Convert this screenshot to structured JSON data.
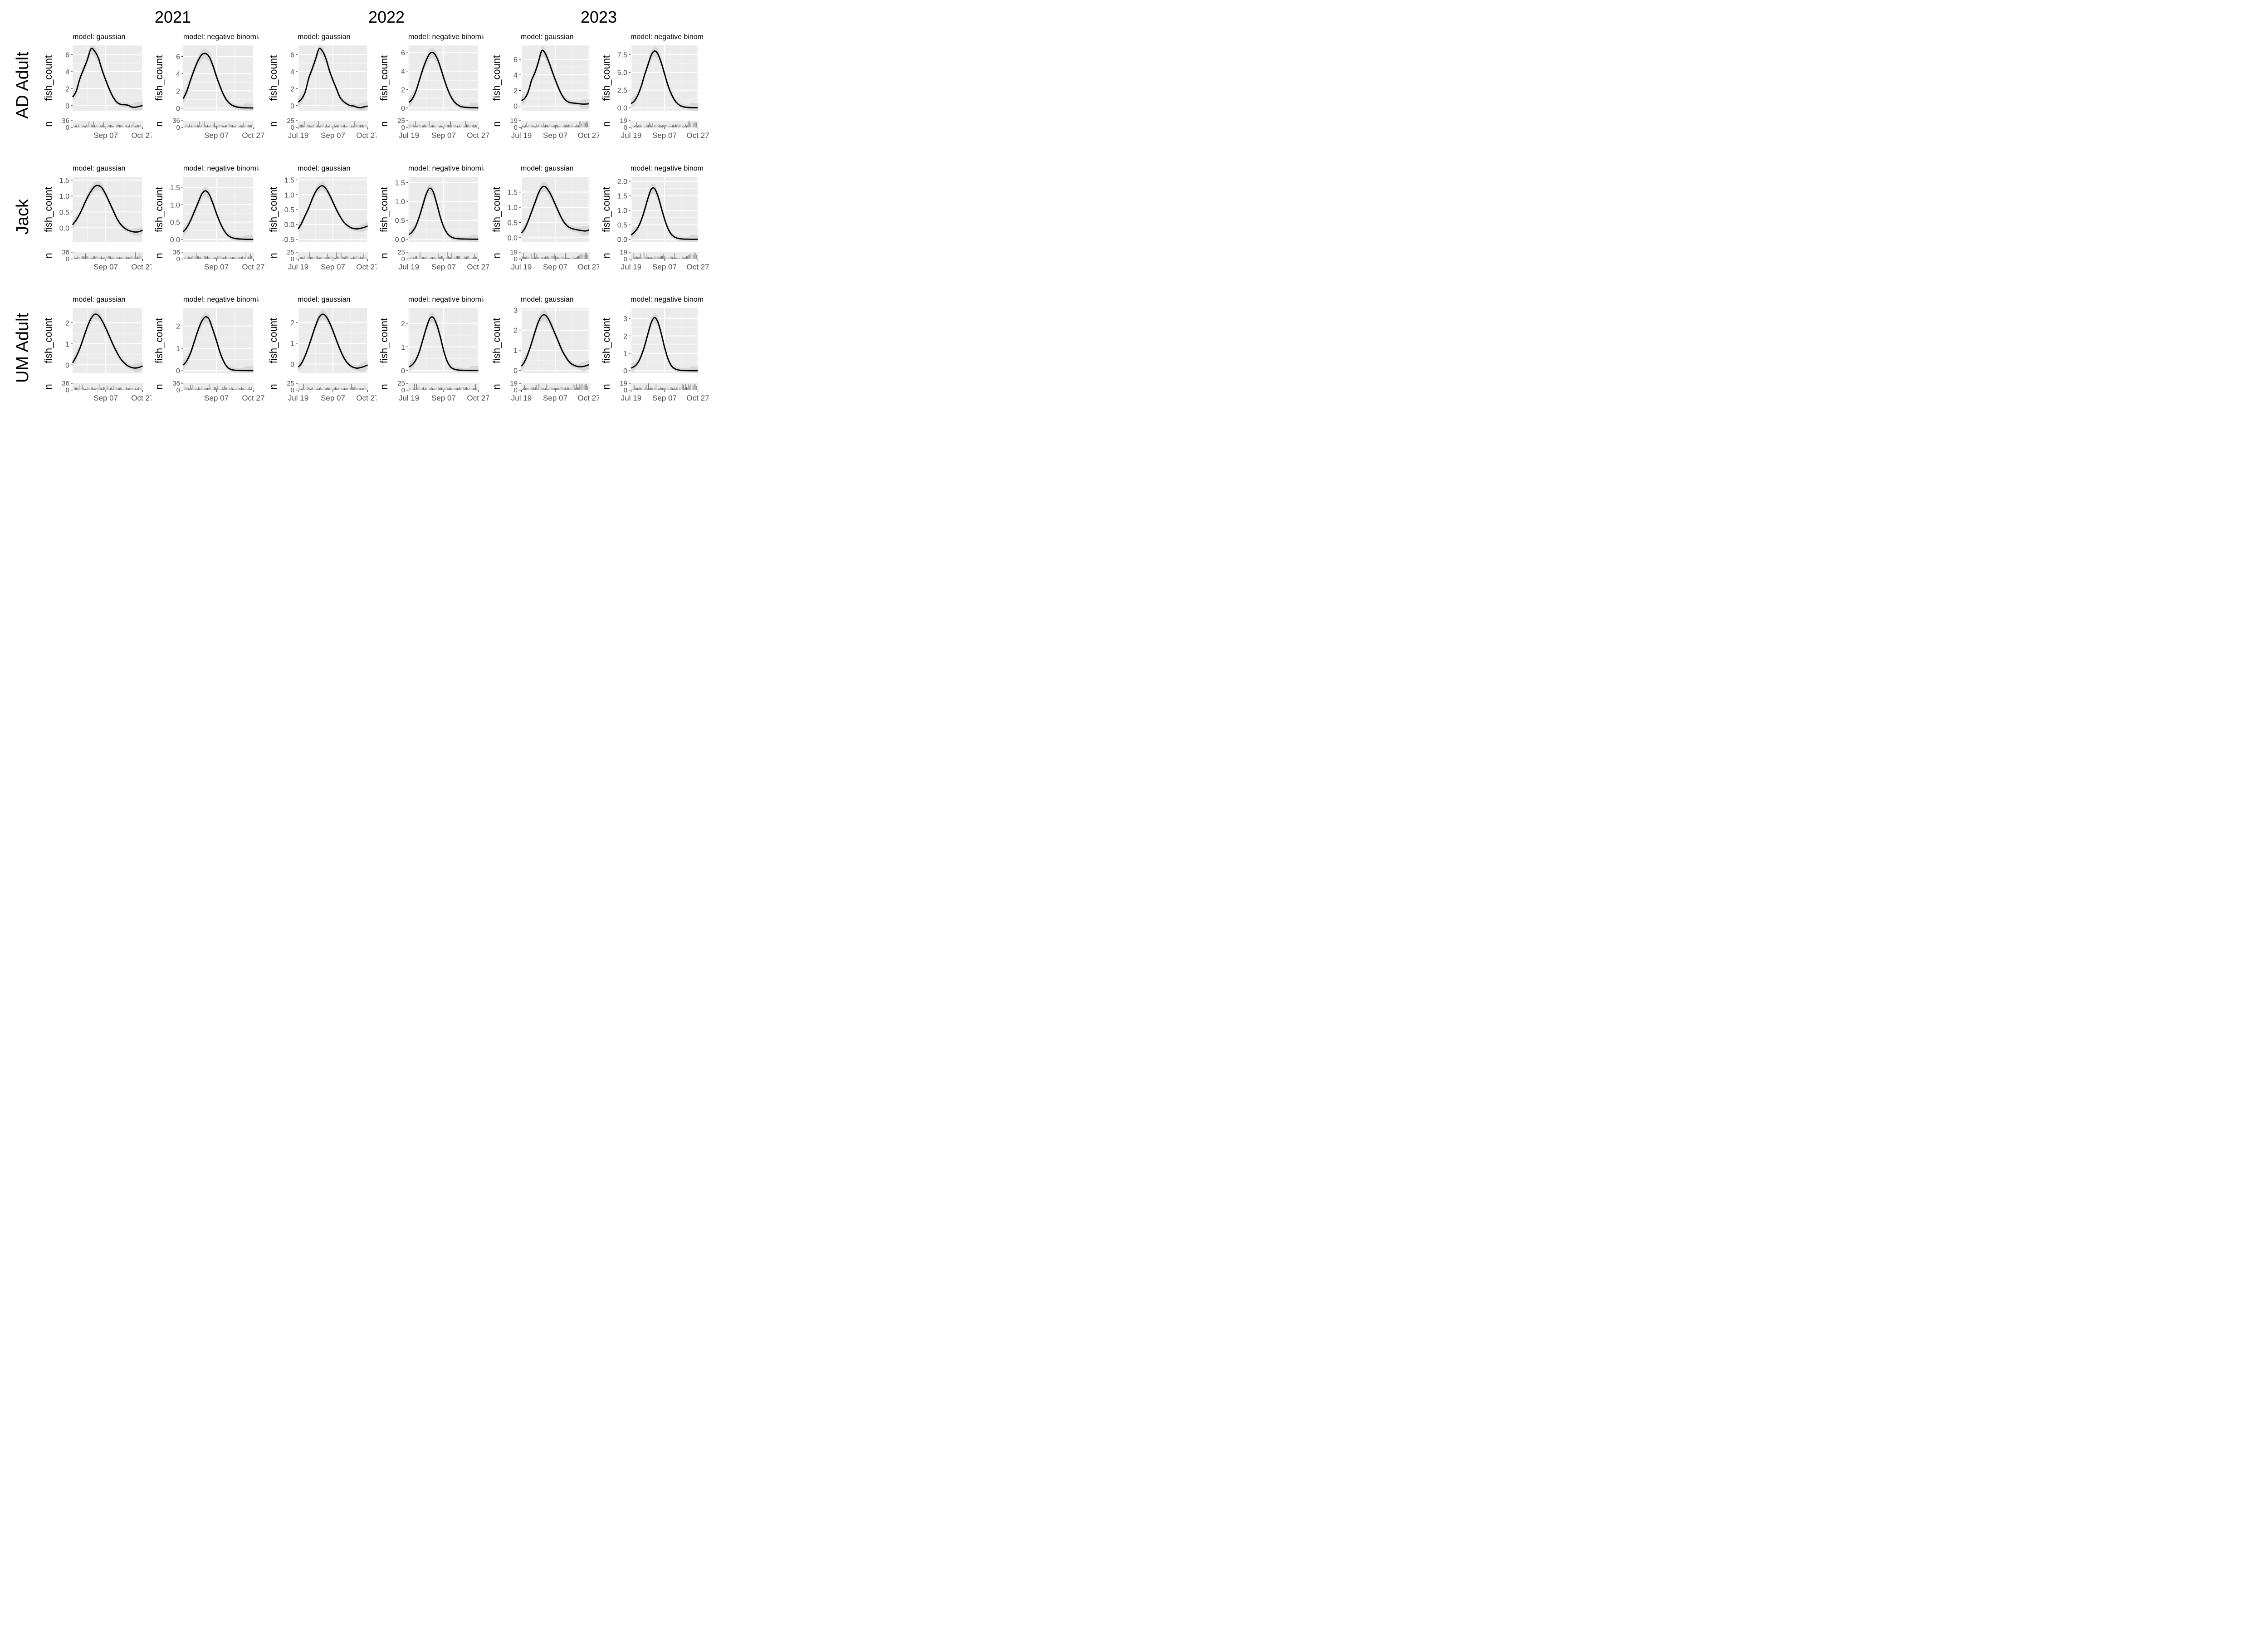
{
  "figure": {
    "years": [
      "2021",
      "2022",
      "2023"
    ],
    "rows": [
      "AD Adult",
      "Jack",
      "UM Adult"
    ],
    "panel_titles": [
      "model: gaussian",
      "model: negative binomial"
    ],
    "y_axis_title": "fish_count",
    "hist_axis_title": "n"
  },
  "chart_data": {
    "type": "line",
    "description_rows": [
      "AD Adult",
      "Jack",
      "UM Adult"
    ],
    "x_axis": {
      "label": "",
      "unit": "day-of-year",
      "tick_labels_by_year": {
        "2021": [
          "Sep 07",
          "Oct 27"
        ],
        "2022": [
          "Jul 19",
          "Sep 07",
          "Oct 27"
        ],
        "2023": [
          "Jul 19",
          "Sep 07",
          "Oct 27"
        ]
      },
      "tick_doy": {
        "Jul 19": 200,
        "Sep 07": 250,
        "Oct 27": 300
      },
      "xlim_by_year": {
        "2021": [
          205,
          301
        ],
        "2022": [
          199,
          301
        ],
        "2023": [
          199,
          301
        ]
      }
    },
    "hist_max_by_year": {
      "2021": 36,
      "2022": 25,
      "2023": 19
    },
    "panels": [
      {
        "row": "AD Adult",
        "year": "2021",
        "model": "gaussian",
        "ylim": [
          -0.6,
          7.1
        ],
        "yticks": [
          0,
          2,
          4,
          6
        ],
        "x": [
          205,
          210,
          215,
          220,
          225,
          230,
          235,
          240,
          245,
          250,
          255,
          260,
          265,
          270,
          275,
          280,
          285,
          290,
          295,
          300
        ],
        "y": [
          1.0,
          1.7,
          3.2,
          4.3,
          5.4,
          6.7,
          6.4,
          5.6,
          4.2,
          3.0,
          1.9,
          1.0,
          0.4,
          0.15,
          0.1,
          0.05,
          -0.15,
          -0.2,
          -0.1,
          0.0
        ]
      },
      {
        "row": "AD Adult",
        "year": "2021",
        "model": "negative binomial",
        "ylim": [
          -0.3,
          7.3
        ],
        "yticks": [
          0,
          2,
          4,
          6
        ],
        "x": [
          205,
          210,
          215,
          220,
          225,
          230,
          235,
          240,
          245,
          250,
          255,
          260,
          265,
          270,
          275,
          280,
          285,
          290,
          295,
          300
        ],
        "y": [
          1.1,
          2.0,
          3.3,
          4.5,
          5.5,
          6.2,
          6.35,
          6.0,
          5.0,
          3.7,
          2.5,
          1.5,
          0.8,
          0.4,
          0.2,
          0.1,
          0.05,
          0.03,
          0.02,
          0.01
        ]
      },
      {
        "row": "AD Adult",
        "year": "2022",
        "model": "gaussian",
        "ylim": [
          -0.6,
          7.1
        ],
        "yticks": [
          0,
          2,
          4,
          6
        ],
        "x": [
          200,
          205,
          210,
          215,
          220,
          225,
          230,
          235,
          240,
          245,
          250,
          255,
          260,
          265,
          270,
          275,
          280,
          285,
          290,
          295,
          300
        ],
        "y": [
          0.4,
          0.8,
          1.6,
          3.2,
          4.3,
          5.5,
          6.7,
          6.4,
          5.5,
          4.1,
          3.0,
          2.0,
          1.0,
          0.5,
          0.2,
          0.0,
          -0.05,
          -0.2,
          -0.25,
          -0.15,
          -0.05
        ]
      },
      {
        "row": "AD Adult",
        "year": "2022",
        "model": "negative binomial",
        "ylim": [
          -0.3,
          6.8
        ],
        "yticks": [
          0,
          2,
          4,
          6
        ],
        "x": [
          200,
          205,
          210,
          215,
          220,
          225,
          230,
          235,
          240,
          245,
          250,
          255,
          260,
          265,
          270,
          275,
          280,
          285,
          290,
          295,
          300
        ],
        "y": [
          0.6,
          1.0,
          1.8,
          3.0,
          4.2,
          5.2,
          5.9,
          6.0,
          5.5,
          4.5,
          3.3,
          2.2,
          1.3,
          0.7,
          0.35,
          0.15,
          0.08,
          0.05,
          0.03,
          0.02,
          0.01
        ]
      },
      {
        "row": "AD Adult",
        "year": "2023",
        "model": "gaussian",
        "ylim": [
          -0.6,
          7.8
        ],
        "yticks": [
          0,
          2,
          4,
          6
        ],
        "x": [
          200,
          205,
          210,
          215,
          220,
          225,
          230,
          235,
          240,
          245,
          250,
          255,
          260,
          265,
          270,
          275,
          280,
          285,
          290,
          295,
          300
        ],
        "y": [
          0.7,
          1.0,
          1.8,
          3.3,
          4.3,
          5.6,
          7.1,
          6.8,
          5.8,
          4.6,
          3.4,
          2.3,
          1.4,
          0.8,
          0.5,
          0.4,
          0.35,
          0.3,
          0.25,
          0.25,
          0.3
        ]
      },
      {
        "row": "AD Adult",
        "year": "2023",
        "model": "negative binomial",
        "ylim": [
          -0.4,
          8.8
        ],
        "yticks": [
          0,
          2.5,
          5,
          7.5
        ],
        "x": [
          200,
          205,
          210,
          215,
          220,
          225,
          230,
          235,
          240,
          245,
          250,
          255,
          260,
          265,
          270,
          275,
          280,
          285,
          290,
          295,
          300
        ],
        "y": [
          0.6,
          1.0,
          1.8,
          3.0,
          4.6,
          6.0,
          7.4,
          8.0,
          7.6,
          6.4,
          4.8,
          3.2,
          2.0,
          1.1,
          0.55,
          0.25,
          0.12,
          0.06,
          0.03,
          0.02,
          0.01
        ]
      },
      {
        "row": "Jack",
        "year": "2021",
        "model": "gaussian",
        "ylim": [
          -0.45,
          1.6
        ],
        "yticks": [
          0,
          0.5,
          1,
          1.5
        ],
        "x": [
          205,
          210,
          215,
          220,
          225,
          230,
          235,
          240,
          245,
          250,
          255,
          260,
          265,
          270,
          275,
          280,
          285,
          290,
          295,
          300
        ],
        "y": [
          0.1,
          0.25,
          0.45,
          0.7,
          0.95,
          1.15,
          1.3,
          1.33,
          1.25,
          1.05,
          0.8,
          0.55,
          0.3,
          0.12,
          0.0,
          -0.07,
          -0.11,
          -0.13,
          -0.12,
          -0.07
        ]
      },
      {
        "row": "Jack",
        "year": "2021",
        "model": "negative binomial",
        "ylim": [
          -0.08,
          1.8
        ],
        "yticks": [
          0,
          0.5,
          1,
          1.5
        ],
        "x": [
          205,
          210,
          215,
          220,
          225,
          230,
          235,
          240,
          245,
          250,
          255,
          260,
          265,
          270,
          275,
          280,
          285,
          290,
          295,
          300
        ],
        "y": [
          0.22,
          0.35,
          0.55,
          0.8,
          1.05,
          1.3,
          1.4,
          1.3,
          1.05,
          0.75,
          0.48,
          0.27,
          0.13,
          0.06,
          0.03,
          0.015,
          0.01,
          0.005,
          0.003,
          0.002
        ]
      },
      {
        "row": "Jack",
        "year": "2022",
        "model": "gaussian",
        "ylim": [
          -0.6,
          1.6
        ],
        "yticks": [
          -0.5,
          0,
          0.5,
          1,
          1.5
        ],
        "x": [
          200,
          205,
          210,
          215,
          220,
          225,
          230,
          235,
          240,
          245,
          250,
          255,
          260,
          265,
          270,
          275,
          280,
          285,
          290,
          295,
          300
        ],
        "y": [
          -0.15,
          0.05,
          0.3,
          0.55,
          0.85,
          1.1,
          1.25,
          1.3,
          1.2,
          1.0,
          0.75,
          0.5,
          0.28,
          0.1,
          -0.02,
          -0.1,
          -0.14,
          -0.15,
          -0.13,
          -0.1,
          -0.05
        ]
      },
      {
        "row": "Jack",
        "year": "2022",
        "model": "negative binomial",
        "ylim": [
          -0.08,
          1.65
        ],
        "yticks": [
          0,
          0.5,
          1,
          1.5
        ],
        "x": [
          200,
          205,
          210,
          215,
          220,
          225,
          230,
          235,
          240,
          245,
          250,
          255,
          260,
          265,
          270,
          275,
          280,
          285,
          290,
          295,
          300
        ],
        "y": [
          0.12,
          0.2,
          0.35,
          0.6,
          0.9,
          1.2,
          1.35,
          1.25,
          0.95,
          0.6,
          0.33,
          0.16,
          0.07,
          0.03,
          0.015,
          0.008,
          0.005,
          0.003,
          0.002,
          0.001,
          0.001
        ]
      },
      {
        "row": "Jack",
        "year": "2023",
        "model": "gaussian",
        "ylim": [
          -0.15,
          2.0
        ],
        "yticks": [
          0,
          0.5,
          1,
          1.5
        ],
        "x": [
          200,
          205,
          210,
          215,
          220,
          225,
          230,
          235,
          240,
          245,
          250,
          255,
          260,
          265,
          270,
          275,
          280,
          285,
          290,
          295,
          300
        ],
        "y": [
          0.15,
          0.3,
          0.55,
          0.85,
          1.15,
          1.45,
          1.65,
          1.68,
          1.55,
          1.35,
          1.1,
          0.85,
          0.62,
          0.45,
          0.35,
          0.3,
          0.27,
          0.25,
          0.23,
          0.22,
          0.25
        ]
      },
      {
        "row": "Jack",
        "year": "2023",
        "model": "negative binomial",
        "ylim": [
          -0.1,
          2.15
        ],
        "yticks": [
          0,
          0.5,
          1,
          1.5,
          2
        ],
        "x": [
          200,
          205,
          210,
          215,
          220,
          225,
          230,
          235,
          240,
          245,
          250,
          255,
          260,
          265,
          270,
          275,
          280,
          285,
          290,
          295,
          300
        ],
        "y": [
          0.15,
          0.25,
          0.4,
          0.65,
          1.0,
          1.4,
          1.72,
          1.75,
          1.5,
          1.1,
          0.7,
          0.38,
          0.18,
          0.08,
          0.035,
          0.015,
          0.008,
          0.004,
          0.002,
          0.001,
          0.001
        ]
      },
      {
        "row": "UM Adult",
        "year": "2021",
        "model": "gaussian",
        "ylim": [
          -0.4,
          2.7
        ],
        "yticks": [
          0,
          1,
          2
        ],
        "x": [
          205,
          210,
          215,
          220,
          225,
          230,
          235,
          240,
          245,
          250,
          255,
          260,
          265,
          270,
          275,
          280,
          285,
          290,
          295,
          300
        ],
        "y": [
          0.1,
          0.4,
          0.8,
          1.3,
          1.8,
          2.2,
          2.4,
          2.35,
          2.1,
          1.75,
          1.35,
          0.95,
          0.6,
          0.3,
          0.1,
          -0.05,
          -0.12,
          -0.15,
          -0.12,
          -0.05
        ]
      },
      {
        "row": "UM Adult",
        "year": "2021",
        "model": "negative binomial",
        "ylim": [
          -0.12,
          2.8
        ],
        "yticks": [
          0,
          1,
          2
        ],
        "x": [
          205,
          210,
          215,
          220,
          225,
          230,
          235,
          240,
          245,
          250,
          255,
          260,
          265,
          270,
          275,
          280,
          285,
          290,
          295,
          300
        ],
        "y": [
          0.25,
          0.45,
          0.8,
          1.3,
          1.8,
          2.2,
          2.4,
          2.3,
          1.85,
          1.35,
          0.8,
          0.4,
          0.15,
          0.05,
          0.02,
          0.01,
          0.005,
          0.003,
          0.002,
          0.001
        ]
      },
      {
        "row": "UM Adult",
        "year": "2022",
        "model": "gaussian",
        "ylim": [
          -0.45,
          2.7
        ],
        "yticks": [
          0,
          1,
          2
        ],
        "x": [
          200,
          205,
          210,
          215,
          220,
          225,
          230,
          235,
          240,
          245,
          250,
          255,
          260,
          265,
          270,
          275,
          280,
          285,
          290,
          295,
          300
        ],
        "y": [
          -0.15,
          0.05,
          0.4,
          0.85,
          1.35,
          1.85,
          2.25,
          2.4,
          2.3,
          2.0,
          1.6,
          1.15,
          0.72,
          0.35,
          0.08,
          -0.08,
          -0.17,
          -0.2,
          -0.17,
          -0.12,
          -0.05
        ]
      },
      {
        "row": "UM Adult",
        "year": "2022",
        "model": "negative binomial",
        "ylim": [
          -0.12,
          2.65
        ],
        "yticks": [
          0,
          1,
          2
        ],
        "x": [
          200,
          205,
          210,
          215,
          220,
          225,
          230,
          235,
          240,
          245,
          250,
          255,
          260,
          265,
          270,
          275,
          280,
          285,
          290,
          295,
          300
        ],
        "y": [
          0.15,
          0.25,
          0.45,
          0.8,
          1.3,
          1.8,
          2.2,
          2.25,
          1.95,
          1.45,
          0.85,
          0.4,
          0.15,
          0.06,
          0.025,
          0.01,
          0.005,
          0.003,
          0.002,
          0.001,
          0.001
        ]
      },
      {
        "row": "UM Adult",
        "year": "2023",
        "model": "gaussian",
        "ylim": [
          -0.15,
          3.1
        ],
        "yticks": [
          0,
          1,
          2,
          3
        ],
        "x": [
          200,
          205,
          210,
          215,
          220,
          225,
          230,
          235,
          240,
          245,
          250,
          255,
          260,
          265,
          270,
          275,
          280,
          285,
          290,
          295,
          300
        ],
        "y": [
          0.2,
          0.45,
          0.85,
          1.35,
          1.9,
          2.4,
          2.7,
          2.75,
          2.55,
          2.2,
          1.8,
          1.4,
          1.0,
          0.7,
          0.45,
          0.3,
          0.22,
          0.18,
          0.18,
          0.22,
          0.28
        ]
      },
      {
        "row": "UM Adult",
        "year": "2023",
        "model": "negative binomial",
        "ylim": [
          -0.15,
          3.6
        ],
        "yticks": [
          0,
          1,
          2,
          3
        ],
        "x": [
          200,
          205,
          210,
          215,
          220,
          225,
          230,
          235,
          240,
          245,
          250,
          255,
          260,
          265,
          270,
          275,
          280,
          285,
          290,
          295,
          300
        ],
        "y": [
          0.15,
          0.25,
          0.45,
          0.85,
          1.4,
          2.1,
          2.75,
          3.05,
          2.8,
          2.15,
          1.35,
          0.7,
          0.3,
          0.12,
          0.05,
          0.02,
          0.01,
          0.005,
          0.003,
          0.002,
          0.001
        ]
      }
    ]
  }
}
